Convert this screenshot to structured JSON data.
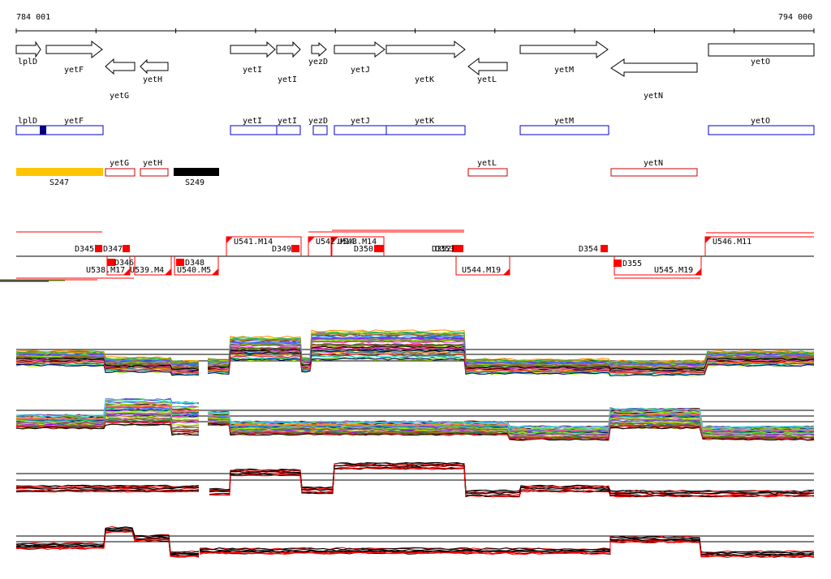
{
  "colors": {
    "gene_outline": "#000000",
    "cds_outline": "#0000cc",
    "cds_fill_mark": "#000080",
    "product_orange": "#ffc400",
    "product_black": "#000000",
    "product_red_outline": "#cc0000",
    "feature_red": "#ff0000",
    "axis": "#000000"
  },
  "scale": {
    "start_label": "784 001",
    "end_label": "794 000"
  },
  "genes": [
    {
      "name": "lplD",
      "dir": "right"
    },
    {
      "name": "yetF",
      "dir": "right"
    },
    {
      "name": "yetG",
      "dir": "left"
    },
    {
      "name": "yetH",
      "dir": "left"
    },
    {
      "name": "yetI",
      "dir": "right"
    },
    {
      "name": "yetI",
      "dir": "right"
    },
    {
      "name": "yezD",
      "dir": "right"
    },
    {
      "name": "yetJ",
      "dir": "right"
    },
    {
      "name": "yetK",
      "dir": "right"
    },
    {
      "name": "yetL",
      "dir": "left"
    },
    {
      "name": "yetM",
      "dir": "right"
    },
    {
      "name": "yetN",
      "dir": "left"
    },
    {
      "name": "yetO",
      "dir": "right"
    }
  ],
  "cds_track": [
    "lplD",
    "yetF",
    "yetI",
    "yetI",
    "yezD",
    "yetJ",
    "yetK",
    "yetM",
    "yetO"
  ],
  "product_track": {
    "bars": [
      "S247",
      "S249"
    ],
    "boxes": [
      "yetG",
      "yetH",
      "yetL",
      "yetN"
    ]
  },
  "upper_features": [
    "D345",
    "D347",
    "U541.M14",
    "D349",
    "U542.M14",
    "U543.M14",
    "D350",
    "D352",
    "D353",
    "D354",
    "U546.M11"
  ],
  "lower_features": [
    "D346",
    "U538.M17",
    "U539.M4",
    "D348",
    "U540.M5",
    "U544.M19",
    "D355",
    "U545.M19"
  ]
}
